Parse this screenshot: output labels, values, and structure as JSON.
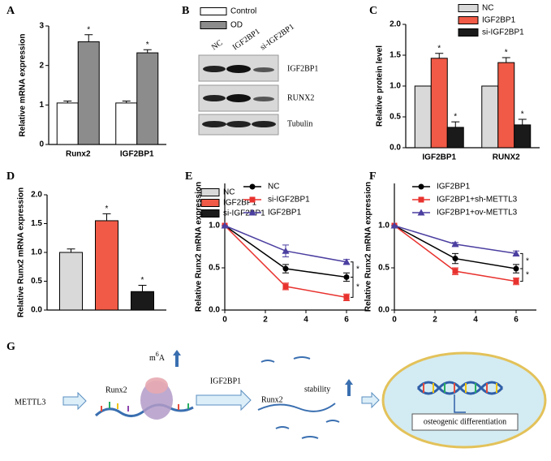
{
  "chart_data": [
    {
      "panel": "A",
      "type": "bar",
      "ylabel": "Relative mRNA expression",
      "categories": [
        "Runx2",
        "IGF2BP1"
      ],
      "series": [
        {
          "name": "Control",
          "color": "#ffffff",
          "values": [
            1.05,
            1.05
          ],
          "errors": [
            0.05,
            0.05
          ]
        },
        {
          "name": "OD",
          "color": "#8c8c8c",
          "values": [
            2.6,
            2.32
          ],
          "errors": [
            0.18,
            0.08
          ],
          "significance": [
            "*",
            "*"
          ]
        }
      ],
      "ylim": [
        0,
        3
      ],
      "yticks": [
        0,
        1,
        2,
        3
      ]
    },
    {
      "panel": "C",
      "type": "bar",
      "ylabel": "Relative protein level",
      "categories": [
        "IGF2BP1",
        "RUNX2"
      ],
      "series": [
        {
          "name": "NC",
          "color": "#d9d9d9",
          "values": [
            1.0,
            1.0
          ]
        },
        {
          "name": "IGF2BP1",
          "color": "#f05a46",
          "values": [
            1.45,
            1.38
          ],
          "errors": [
            0.08,
            0.08
          ],
          "significance": [
            "*",
            "*"
          ]
        },
        {
          "name": "si-IGF2BP1",
          "color": "#1a1a1a",
          "values": [
            0.33,
            0.37
          ],
          "errors": [
            0.09,
            0.09
          ],
          "significance": [
            "*",
            "*"
          ]
        }
      ],
      "ylim": [
        0,
        2
      ],
      "yticks": [
        {
          "value": 0,
          "label": "0.0"
        },
        {
          "value": 0.5,
          "label": "0.5"
        },
        {
          "value": 1,
          "label": "1.0"
        },
        {
          "value": 1.5,
          "label": "1.5"
        },
        {
          "value": 2,
          "label": "2.0"
        }
      ]
    },
    {
      "panel": "D",
      "type": "bar",
      "ylabel": "Relative Runx2 mRNA expression",
      "categories": [
        null
      ],
      "series": [
        {
          "name": "NC",
          "color": "#d9d9d9",
          "values": [
            1.0
          ],
          "errors": [
            0.06
          ]
        },
        {
          "name": "IGF2BP1",
          "color": "#f05a46",
          "values": [
            1.55
          ],
          "errors": [
            0.12
          ],
          "significance": [
            "*"
          ]
        },
        {
          "name": "si-IGF2BP1",
          "color": "#1a1a1a",
          "values": [
            0.32
          ],
          "errors": [
            0.11
          ],
          "significance": [
            "*"
          ]
        }
      ],
      "ylim": [
        0,
        2
      ],
      "yticks": [
        {
          "value": 0,
          "label": "0.0"
        },
        {
          "value": 0.5,
          "label": "0.5"
        },
        {
          "value": 1,
          "label": "1.0"
        },
        {
          "value": 1.5,
          "label": "1.5"
        },
        {
          "value": 2,
          "label": "2.0"
        }
      ]
    },
    {
      "panel": "E",
      "type": "line",
      "ylabel": "Relative Runx2 mRNA expression",
      "x": [
        0,
        3,
        6
      ],
      "series": [
        {
          "name": "NC",
          "color": "#000000",
          "marker": "circle",
          "values": [
            1.0,
            0.49,
            0.39
          ],
          "errors": [
            0,
            0.05,
            0.05
          ]
        },
        {
          "name": "si-IGF2BP1",
          "color": "#e8322e",
          "marker": "square",
          "values": [
            1.0,
            0.28,
            0.15
          ],
          "errors": [
            0,
            0.04,
            0.04
          ]
        },
        {
          "name": "IGF2BP1",
          "color": "#4b3fa0",
          "marker": "triangle",
          "values": [
            1.0,
            0.7,
            0.57
          ],
          "errors": [
            0,
            0.07,
            0.03
          ]
        }
      ],
      "annotations": [
        "*",
        "*"
      ],
      "xlim": [
        0,
        7
      ],
      "xticks": [
        0,
        2,
        4,
        6
      ],
      "ylim": [
        0,
        1.5
      ],
      "yticks": [
        {
          "value": 0,
          "label": "0.0"
        },
        {
          "value": 0.5,
          "label": "0.5"
        },
        {
          "value": 1,
          "label": "1.0"
        }
      ]
    },
    {
      "panel": "F",
      "type": "line",
      "ylabel": "Relative Runx2 mRNA expression",
      "x": [
        0,
        3,
        6
      ],
      "series": [
        {
          "name": "IGF2BP1",
          "color": "#000000",
          "marker": "circle",
          "values": [
            1.0,
            0.61,
            0.49
          ],
          "errors": [
            0,
            0.06,
            0.05
          ]
        },
        {
          "name": "IGF2BP1+sh-METTL3",
          "color": "#e8322e",
          "marker": "square",
          "values": [
            1.0,
            0.46,
            0.34
          ],
          "errors": [
            0,
            0.04,
            0.04
          ]
        },
        {
          "name": "IGF2BP1+ov-METTL3",
          "color": "#4b3fa0",
          "marker": "triangle",
          "values": [
            1.0,
            0.78,
            0.67
          ],
          "errors": [
            0,
            0.02,
            0.03
          ]
        }
      ],
      "annotations": [
        "*",
        "*"
      ],
      "xlim": [
        0,
        7
      ],
      "xticks": [
        0,
        2,
        4,
        6
      ],
      "ylim": [
        0,
        1.5
      ],
      "yticks": [
        {
          "value": 0,
          "label": "0.0"
        },
        {
          "value": 0.5,
          "label": "0.5"
        },
        {
          "value": 1,
          "label": "1.0"
        }
      ]
    }
  ],
  "blot": {
    "panel": "B",
    "columns": [
      "NC",
      "IGF2BP1",
      "si-IGF2BP1"
    ],
    "rows": [
      "IGF2BP1",
      "RUNX2",
      "Tubulin"
    ]
  },
  "diagram": {
    "panel": "G",
    "start": "METTL3",
    "mrna": "Runx2",
    "mod": {
      "base": "m",
      "sup": "6",
      "rest": "A"
    },
    "reader": "IGF2BP1",
    "mrna2": "Runx2",
    "effect": "stability",
    "outcome": "osteogenic differentiation"
  }
}
